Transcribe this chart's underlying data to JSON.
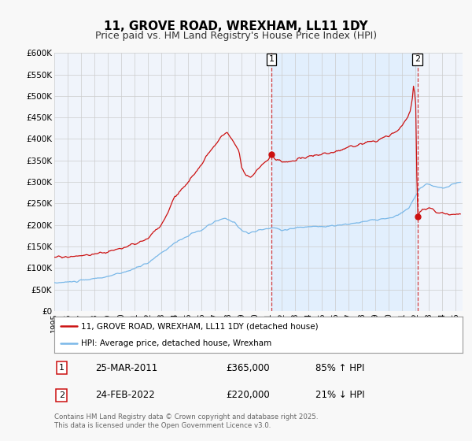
{
  "title": "11, GROVE ROAD, WREXHAM, LL11 1DY",
  "subtitle": "Price paid vs. HM Land Registry's House Price Index (HPI)",
  "ylim": [
    0,
    600000
  ],
  "yticks": [
    0,
    50000,
    100000,
    150000,
    200000,
    250000,
    300000,
    350000,
    400000,
    450000,
    500000,
    550000,
    600000
  ],
  "xlim_start": 1995.0,
  "xlim_end": 2025.5,
  "fig_bg_color": "#f8f8f8",
  "plot_bg_color": "#f0f4fb",
  "shade_color": "#ddeeff",
  "grid_color": "#cccccc",
  "hpi_color": "#7ab8e8",
  "price_color": "#cc1111",
  "marker1_date": 2011.23,
  "marker1_price": 365000,
  "marker1_label": "25-MAR-2011",
  "marker1_value": "£365,000",
  "marker1_pct": "85% ↑ HPI",
  "marker2_date": 2022.13,
  "marker2_price": 220000,
  "marker2_label": "24-FEB-2022",
  "marker2_value": "£220,000",
  "marker2_pct": "21% ↓ HPI",
  "legend_line1": "11, GROVE ROAD, WREXHAM, LL11 1DY (detached house)",
  "legend_line2": "HPI: Average price, detached house, Wrexham",
  "footer": "Contains HM Land Registry data © Crown copyright and database right 2025.\nThis data is licensed under the Open Government Licence v3.0.",
  "title_fontsize": 11,
  "subtitle_fontsize": 9
}
